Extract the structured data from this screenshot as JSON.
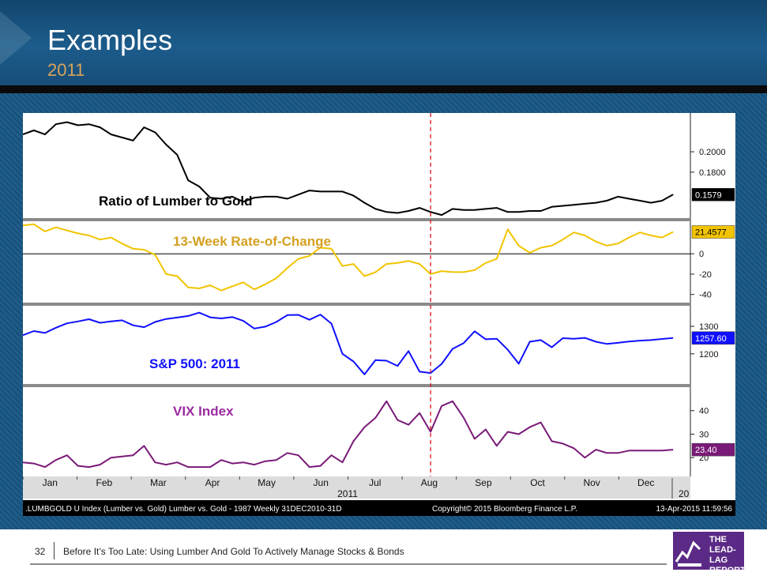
{
  "header": {
    "title": "Examples",
    "subtitle": "2011"
  },
  "footer": {
    "page_number": "32",
    "text": "Before It’s Too Late: Using Lumber And Gold To Actively Manage Stocks & Bonds"
  },
  "logo": {
    "line1": "THE",
    "line2": "LEAD-LAG",
    "line3": "REPORT"
  },
  "colors": {
    "ratio": "#000000",
    "roc": "#f2c400",
    "spx": "#1010ff",
    "vix": "#7a1a78",
    "marker": "#d8141e"
  },
  "chart_data": {
    "type": "line",
    "x_labels": [
      "Jan",
      "Feb",
      "Mar",
      "Apr",
      "May",
      "Jun",
      "Jul",
      "Aug",
      "Sep",
      "Oct",
      "Nov",
      "Dec"
    ],
    "year_label": "2011",
    "next_year_label": "20",
    "info_left": ".LUMBGOLD U Index (Lumber vs. Gold) Lumber vs. Gold - 1987  Weekly 31DEC2010-31D",
    "info_mid": "Copyright© 2015 Bloomberg Finance L.P.",
    "info_right": "13-Apr-2015 11:59:56",
    "vertical_marker_week": 37,
    "panels": [
      {
        "name": "Ratio of Lumber to Gold",
        "ylim": [
          0.135,
          0.238
        ],
        "ticks": [
          "0.2000",
          "0.1800"
        ],
        "tick_values": [
          0.2,
          0.18
        ],
        "last_value": "0.1579",
        "values": [
          0.217,
          0.221,
          0.217,
          0.227,
          0.229,
          0.226,
          0.227,
          0.224,
          0.217,
          0.214,
          0.211,
          0.224,
          0.219,
          0.207,
          0.197,
          0.172,
          0.166,
          0.155,
          0.154,
          0.156,
          0.151,
          0.155,
          0.156,
          0.156,
          0.154,
          0.158,
          0.162,
          0.161,
          0.161,
          0.161,
          0.157,
          0.15,
          0.144,
          0.141,
          0.14,
          0.142,
          0.145,
          0.141,
          0.138,
          0.144,
          0.143,
          0.143,
          0.144,
          0.145,
          0.141,
          0.141,
          0.142,
          0.142,
          0.146,
          0.147,
          0.148,
          0.149,
          0.15,
          0.152,
          0.156,
          0.154,
          0.152,
          0.15,
          0.152,
          0.158
        ]
      },
      {
        "name": "13-Week Rate-of-Change",
        "ylim": [
          -48,
          32
        ],
        "ticks": [
          "0",
          "-20",
          "-40"
        ],
        "tick_values": [
          0,
          -20,
          -40
        ],
        "last_value": "21.4577",
        "values": [
          28,
          29,
          22,
          26,
          23,
          20,
          18,
          14,
          16,
          10,
          5,
          4,
          -1,
          -20,
          -22,
          -33,
          -34,
          -31,
          -36,
          -32,
          -28,
          -35,
          -30,
          -24,
          -14,
          -5,
          -2,
          6,
          5,
          -12,
          -10,
          -22,
          -18,
          -10,
          -9,
          -7,
          -10,
          -20,
          -17,
          -18,
          -18,
          -16,
          -9,
          -5,
          24,
          8,
          1,
          6,
          8,
          14,
          21,
          18,
          12,
          8,
          10,
          16,
          21,
          18,
          16,
          21.5
        ]
      },
      {
        "name": "S&P 500: 2011",
        "ylim": [
          1090,
          1375
        ],
        "ticks": [
          "1300",
          "1200"
        ],
        "tick_values": [
          1300,
          1200
        ],
        "last_value": "1257.60",
        "values": [
          1268,
          1283,
          1276,
          1295,
          1311,
          1318,
          1326,
          1313,
          1318,
          1322,
          1304,
          1297,
          1316,
          1327,
          1332,
          1338,
          1350,
          1333,
          1329,
          1334,
          1320,
          1292,
          1299,
          1316,
          1341,
          1342,
          1324,
          1343,
          1310,
          1200,
          1172,
          1125,
          1177,
          1175,
          1156,
          1210,
          1135,
          1130,
          1163,
          1218,
          1239,
          1282,
          1253,
          1255,
          1215,
          1164,
          1244,
          1250,
          1224,
          1257,
          1255,
          1258,
          1244,
          1236,
          1240,
          1245,
          1248,
          1250,
          1254,
          1257.6
        ]
      },
      {
        "name": "VIX Index",
        "ylim": [
          12,
          50
        ],
        "ticks": [
          "40",
          "30",
          "20"
        ],
        "tick_values": [
          40,
          30,
          20
        ],
        "last_value": "23.40",
        "values": [
          18,
          17.5,
          16,
          19,
          21,
          16.5,
          16,
          17,
          20,
          20.5,
          21,
          25,
          18,
          17,
          18,
          16,
          16,
          16,
          19,
          17.5,
          18,
          17,
          18.5,
          19,
          22,
          21,
          16,
          16.5,
          21,
          18,
          27,
          33,
          37,
          44,
          36,
          34,
          39,
          31,
          42,
          44,
          37,
          28,
          32,
          25,
          31,
          30,
          33,
          35,
          27,
          26,
          24,
          20,
          23.4,
          22,
          22,
          23,
          23,
          23,
          23,
          23.4
        ]
      }
    ]
  }
}
